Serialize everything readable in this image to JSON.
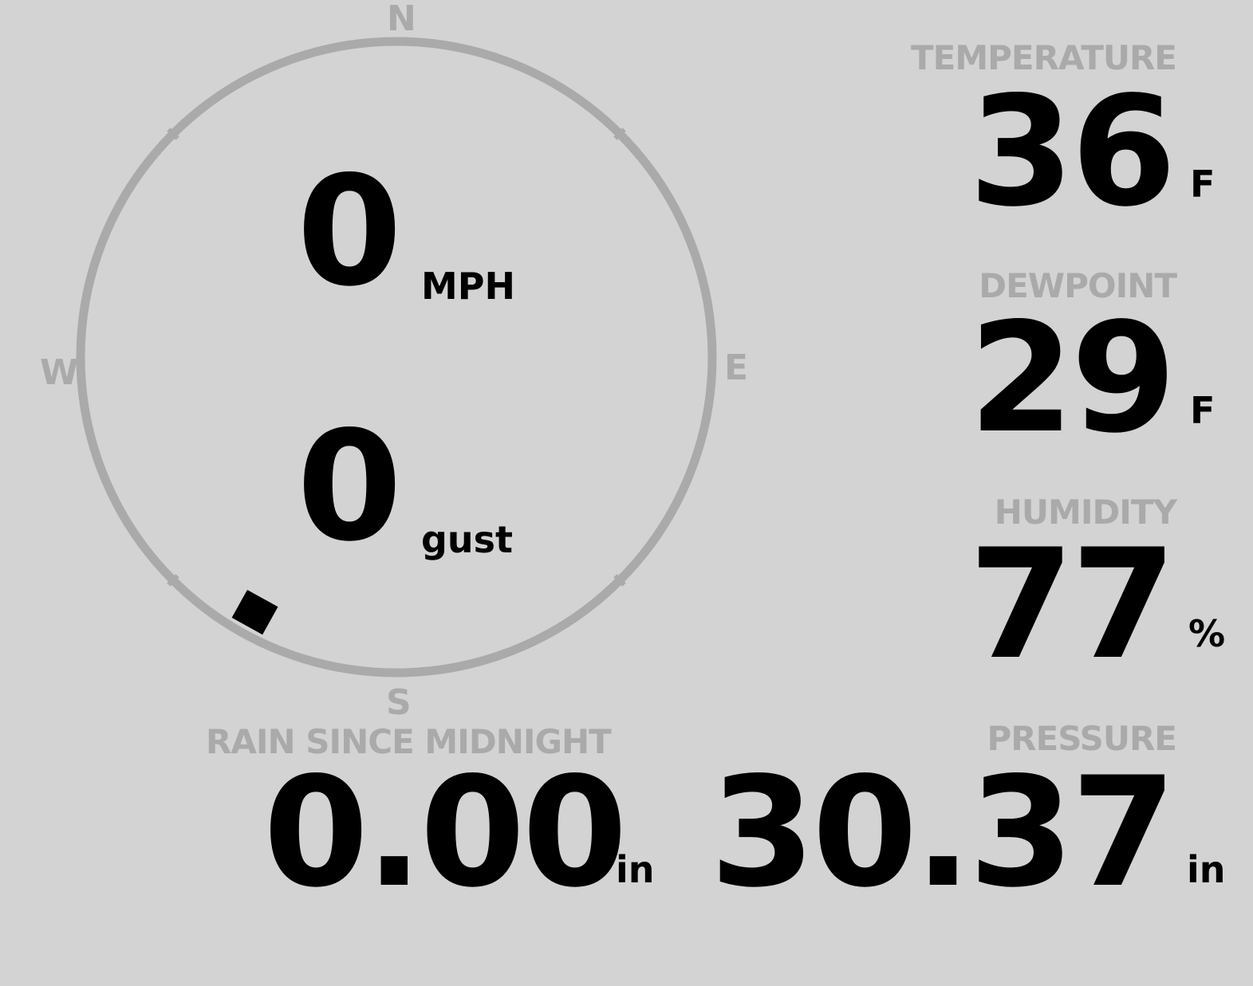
{
  "compass": {
    "labels": {
      "n": "N",
      "e": "E",
      "s": "S",
      "w": "W"
    },
    "direction_degrees": 209,
    "ring_color": "#aaaaaa",
    "marker_color": "#000000"
  },
  "wind": {
    "speed": "0",
    "speed_unit": "MPH",
    "gust": "0",
    "gust_unit": "gust"
  },
  "temperature": {
    "label": "TEMPERATURE",
    "value": "36",
    "unit": "F"
  },
  "dewpoint": {
    "label": "DEWPOINT",
    "value": "29",
    "unit": "F"
  },
  "humidity": {
    "label": "HUMIDITY",
    "value": "77",
    "unit": "%"
  },
  "rain": {
    "label": "RAIN SINCE MIDNIGHT",
    "value": "0.00",
    "unit": "in"
  },
  "pressure": {
    "label": "PRESSURE",
    "value": "30.37",
    "unit": "in"
  },
  "colors": {
    "background": "#d3d3d3",
    "label": "#aaaaaa",
    "value": "#000000"
  }
}
